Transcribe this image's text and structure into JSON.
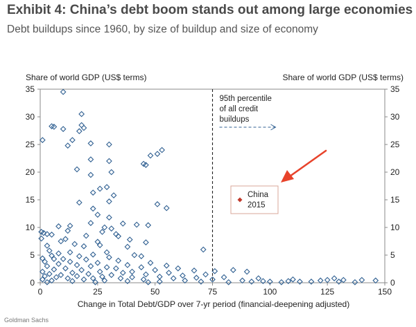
{
  "header": {
    "title": "Exhibit 4: China’s debt boom stands out among large economies",
    "subtitle": "Debt buildups since 1960, by size of buildup and size of economy"
  },
  "source": "Goldman Sachs",
  "chart_data": {
    "type": "scatter",
    "xlabel": "Change in Total Debt/GDP over 7-yr period (financial-deepening adjusted)",
    "ylabel_left": "Share of world GDP (US$ terms)",
    "ylabel_right": "Share of world GDP (US$ terms)",
    "xlim": [
      0,
      150
    ],
    "ylim": [
      0,
      35
    ],
    "x_ticks": [
      0,
      25,
      50,
      75,
      100,
      125,
      150
    ],
    "y_ticks": [
      0,
      5,
      10,
      15,
      20,
      25,
      30,
      35
    ],
    "grid": false,
    "colors": {
      "points": "#2f5f91",
      "china": "#c0392b",
      "arrow": "#e8432b",
      "box": "#d9a79a"
    },
    "reference_line": {
      "x": 75,
      "label_lines": [
        "95th percentile",
        "of all credit",
        "buildups"
      ]
    },
    "highlight": {
      "label_lines": [
        "China",
        "2015"
      ]
    },
    "series": [
      {
        "name": "",
        "points": [
          [
            10,
            34.5
          ],
          [
            18,
            30.5
          ],
          [
            19,
            28
          ],
          [
            5,
            28.3
          ],
          [
            6,
            28.2
          ],
          [
            10,
            27.8
          ],
          [
            17,
            27.4
          ],
          [
            18,
            28.5
          ],
          [
            1,
            25.8
          ],
          [
            14,
            25.8
          ],
          [
            22,
            25.2
          ],
          [
            30,
            25
          ],
          [
            12,
            24.8
          ],
          [
            53,
            24
          ],
          [
            51,
            23.3
          ],
          [
            48,
            23
          ],
          [
            22,
            22.3
          ],
          [
            45,
            21.5
          ],
          [
            30,
            22
          ],
          [
            46,
            21.3
          ],
          [
            16,
            20.5
          ],
          [
            31,
            20
          ],
          [
            22,
            19.5
          ],
          [
            29,
            17.3
          ],
          [
            26,
            17
          ],
          [
            23,
            16.3
          ],
          [
            32,
            15.8
          ],
          [
            51,
            14.2
          ],
          [
            55,
            13.5
          ],
          [
            17,
            14.5
          ],
          [
            30,
            14.7
          ],
          [
            23,
            13.4
          ],
          [
            25,
            12.3
          ],
          [
            30,
            11.8
          ],
          [
            22,
            10.8
          ],
          [
            36,
            10.7
          ],
          [
            42,
            10.5
          ],
          [
            47,
            10.4
          ],
          [
            13,
            10.3
          ],
          [
            8,
            10.2
          ],
          [
            28,
            10
          ],
          [
            31,
            9.8
          ],
          [
            12,
            9.4
          ],
          [
            0.5,
            9.2
          ],
          [
            1.5,
            9
          ],
          [
            3,
            8.8
          ],
          [
            27,
            9.2
          ],
          [
            33,
            8.8
          ],
          [
            5,
            8.7
          ],
          [
            20,
            8.5
          ],
          [
            34,
            8.4
          ],
          [
            0.5,
            8
          ],
          [
            11,
            7.9
          ],
          [
            39,
            7.8
          ],
          [
            9,
            7.5
          ],
          [
            25,
            7.4
          ],
          [
            46,
            7.3
          ],
          [
            15,
            7
          ],
          [
            26,
            6.8
          ],
          [
            3,
            6.7
          ],
          [
            19,
            6.6
          ],
          [
            38,
            6.5
          ],
          [
            71,
            6
          ],
          [
            4,
            5.8
          ],
          [
            13,
            5.5
          ],
          [
            29,
            5.5
          ],
          [
            8,
            5.3
          ],
          [
            23,
            5.1
          ],
          [
            41,
            5
          ],
          [
            5,
            4.9
          ],
          [
            17,
            4.8
          ],
          [
            44,
            4.8
          ],
          [
            30,
            4.6
          ],
          [
            1,
            4.4
          ],
          [
            10,
            4.3
          ],
          [
            6,
            4.3
          ],
          [
            20,
            4.2
          ],
          [
            34,
            4
          ],
          [
            2,
            3.8
          ],
          [
            13,
            3.8
          ],
          [
            25,
            3.6
          ],
          [
            48,
            3.6
          ],
          [
            8,
            3.4
          ],
          [
            16,
            3.2
          ],
          [
            38,
            3.2
          ],
          [
            55,
            3.1
          ],
          [
            3,
            3
          ],
          [
            22,
            3
          ],
          [
            29,
            2.8
          ],
          [
            44,
            2.8
          ],
          [
            11,
            2.6
          ],
          [
            33,
            2.6
          ],
          [
            60,
            2.6
          ],
          [
            6,
            2.4
          ],
          [
            18,
            2.3
          ],
          [
            50,
            2.3
          ],
          [
            67,
            2.2
          ],
          [
            76,
            2.1
          ],
          [
            1,
            2
          ],
          [
            26,
            2
          ],
          [
            40,
            2
          ],
          [
            90,
            2
          ],
          [
            84,
            2.3
          ],
          [
            14,
            1.8
          ],
          [
            36,
            1.8
          ],
          [
            56,
            1.8
          ],
          [
            4,
            1.6
          ],
          [
            21,
            1.6
          ],
          [
            46,
            1.5
          ],
          [
            72,
            1.5
          ],
          [
            9,
            1.4
          ],
          [
            31,
            1.4
          ],
          [
            62,
            1.3
          ],
          [
            2,
            1.2
          ],
          [
            16,
            1.2
          ],
          [
            27,
            1.1
          ],
          [
            52,
            1.1
          ],
          [
            80,
            1
          ],
          [
            7,
            1
          ],
          [
            40,
            1
          ],
          [
            68,
            0.9
          ],
          [
            12,
            0.8
          ],
          [
            23,
            0.8
          ],
          [
            35,
            0.8
          ],
          [
            58,
            0.8
          ],
          [
            95,
            0.8
          ],
          [
            1,
            0.6
          ],
          [
            19,
            0.6
          ],
          [
            45,
            0.6
          ],
          [
            75,
            0.6
          ],
          [
            110,
            0.6
          ],
          [
            5,
            0.4
          ],
          [
            28,
            0.4
          ],
          [
            63,
            0.4
          ],
          [
            88,
            0.4
          ],
          [
            125,
            0.5
          ],
          [
            132,
            0.5
          ],
          [
            140,
            0.5
          ],
          [
            14,
            0.3
          ],
          [
            38,
            0.3
          ],
          [
            52,
            0.2
          ],
          [
            70,
            0.2
          ],
          [
            100,
            0.2
          ],
          [
            118,
            0.2
          ],
          [
            130,
            0.2
          ],
          [
            3,
            0.1
          ],
          [
            24,
            0.1
          ],
          [
            47,
            0.1
          ],
          [
            82,
            0.1
          ],
          [
            105,
            0.1
          ],
          [
            113,
            0.2
          ],
          [
            137,
            0.1
          ],
          [
            146,
            0.4
          ],
          [
            128,
            0.8
          ],
          [
            122,
            0.4
          ],
          [
            108,
            0.3
          ],
          [
            97,
            0.3
          ],
          [
            92,
            0.2
          ]
        ]
      }
    ]
  }
}
